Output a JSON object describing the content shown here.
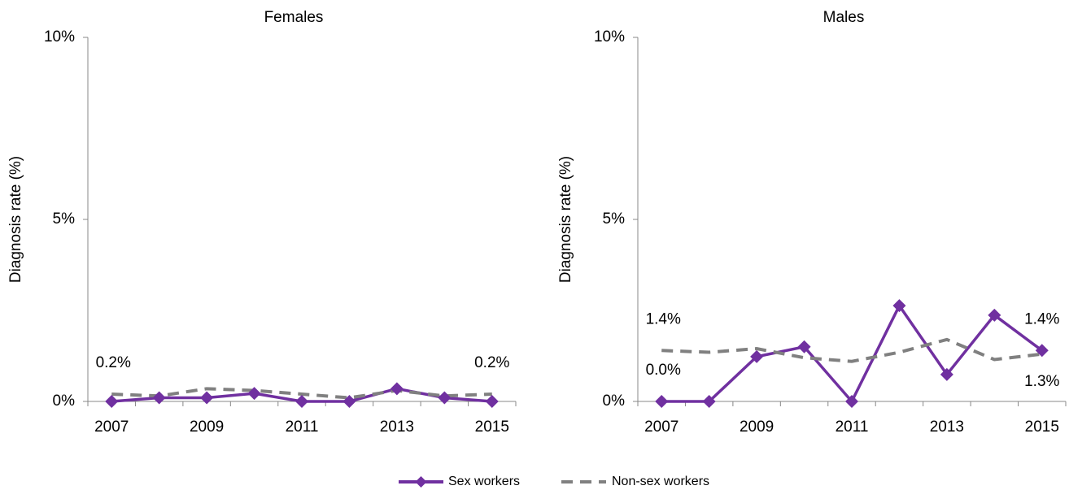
{
  "chart_data": [
    {
      "type": "line",
      "title": "Females",
      "ylabel": "Diagnosis rate (%)",
      "categories": [
        "2007",
        null,
        "2009",
        null,
        "2011",
        null,
        "2013",
        null,
        "2015"
      ],
      "ylim": [
        0,
        10
      ],
      "yticks": [
        {
          "value": 0,
          "label": "0%"
        },
        {
          "value": 5,
          "label": "5%"
        },
        {
          "value": 10,
          "label": "10%"
        }
      ],
      "series": [
        {
          "name": "Sex workers",
          "color": "#7030a0",
          "marker": "diamond",
          "dash": false,
          "values": [
            0,
            0.1,
            0.1,
            0.22,
            0,
            0,
            0.35,
            0.1,
            0
          ]
        },
        {
          "name": "Non-sex workers",
          "color": "#808080",
          "dash": true,
          "values": [
            0.2,
            0.15,
            0.35,
            0.3,
            0.2,
            0.1,
            0.3,
            0.15,
            0.2
          ],
          "value_labels": [
            "0.2%",
            null,
            null,
            null,
            null,
            null,
            null,
            null,
            "0.2%"
          ]
        }
      ]
    },
    {
      "type": "line",
      "title": "Males",
      "ylabel": "Diagnosis rate (%)",
      "categories": [
        "2007",
        null,
        "2009",
        null,
        "2011",
        null,
        "2013",
        null,
        "2015"
      ],
      "ylim": [
        0,
        10
      ],
      "yticks": [
        {
          "value": 0,
          "label": "0%"
        },
        {
          "value": 5,
          "label": "5%"
        },
        {
          "value": 10,
          "label": "10%"
        }
      ],
      "series": [
        {
          "color": "#7030a0",
          "marker": "diamond",
          "dash": false,
          "values": [
            0,
            0,
            1.23,
            1.5,
            0,
            2.63,
            0.74,
            2.37,
            1.4
          ],
          "value_labels": [
            "0.0%",
            null,
            null,
            null,
            null,
            null,
            null,
            null,
            "1.4%"
          ]
        },
        {
          "color": "#808080",
          "dash": true,
          "values": [
            1.4,
            1.35,
            1.45,
            1.2,
            1.1,
            1.35,
            1.7,
            1.15,
            1.3
          ],
          "value_labels": [
            "1.4%",
            null,
            null,
            null,
            null,
            null,
            null,
            null,
            "1.3%"
          ]
        }
      ]
    }
  ]
}
